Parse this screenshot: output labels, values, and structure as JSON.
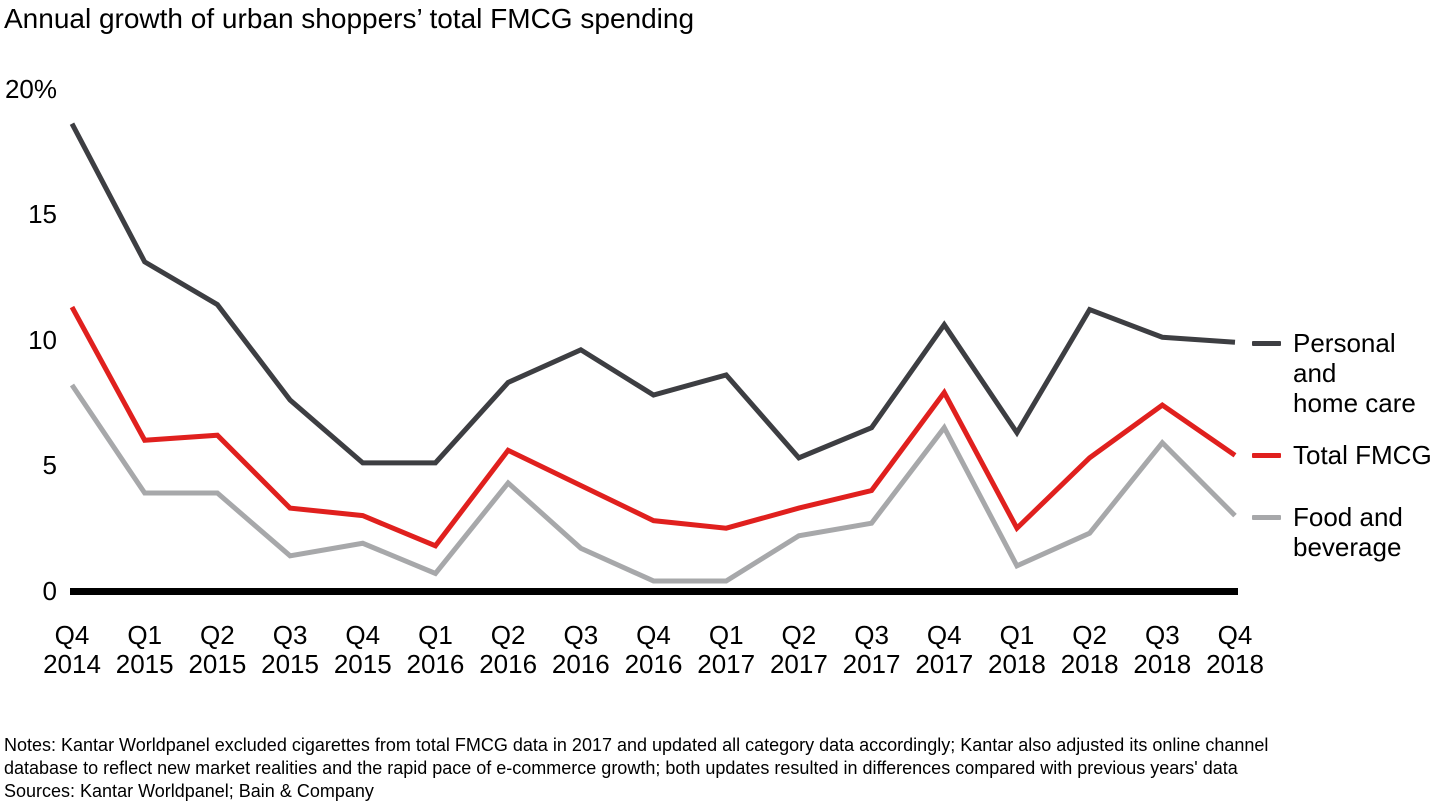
{
  "title": "Annual growth of urban shoppers’ total FMCG spending",
  "chart_data": {
    "type": "line",
    "categories": [
      "Q4 2014",
      "Q1 2015",
      "Q2 2015",
      "Q3 2015",
      "Q4 2015",
      "Q1 2016",
      "Q2 2016",
      "Q3 2016",
      "Q4 2016",
      "Q1 2017",
      "Q2 2017",
      "Q3 2017",
      "Q4 2017",
      "Q1 2018",
      "Q2 2018",
      "Q3 2018",
      "Q4 2018"
    ],
    "series": [
      {
        "name": "Personal and home care",
        "color": "#3d3e42",
        "values": [
          18.6,
          13.1,
          11.4,
          7.6,
          5.1,
          5.1,
          8.3,
          9.6,
          7.8,
          8.6,
          5.3,
          6.5,
          10.6,
          6.3,
          11.2,
          10.1,
          9.9
        ]
      },
      {
        "name": "Total FMCG",
        "color": "#e0201e",
        "values": [
          11.3,
          6.0,
          6.2,
          3.3,
          3.0,
          1.8,
          5.6,
          4.2,
          2.8,
          2.5,
          3.3,
          4.0,
          7.9,
          2.5,
          5.3,
          7.4,
          5.4
        ]
      },
      {
        "name": "Food and beverage",
        "color": "#a7a8aa",
        "values": [
          8.2,
          3.9,
          3.9,
          1.4,
          1.9,
          0.7,
          4.3,
          1.7,
          0.4,
          0.4,
          2.2,
          2.7,
          6.5,
          1.0,
          2.3,
          5.9,
          3.0
        ]
      }
    ],
    "title": "Annual growth of urban shoppers’ total FMCG spending",
    "xlabel": "",
    "ylabel": "",
    "ylim": [
      0,
      20
    ],
    "y_ticks": [
      {
        "label": "20%",
        "value": 20
      },
      {
        "label": "15",
        "value": 15
      },
      {
        "label": "10",
        "value": 10
      },
      {
        "label": "5",
        "value": 5
      },
      {
        "label": "0",
        "value": 0
      }
    ],
    "grid": false,
    "legend_position": "right",
    "axis_color": "#000000"
  },
  "legend": {
    "items": [
      {
        "label": "Personal and\nhome care",
        "color": "#3d3e42"
      },
      {
        "label": "Total FMCG",
        "color": "#e0201e"
      },
      {
        "label": "Food and\nbeverage",
        "color": "#a7a8aa"
      }
    ]
  },
  "notes": {
    "line1": "Notes: Kantar Worldpanel excluded cigarettes from total FMCG data in 2017 and updated all category data accordingly; Kantar also adjusted its online channel",
    "line2": "database to reflect new market realities and the rapid pace of e-commerce growth; both updates resulted in differences compared with previous years' data",
    "sources": "Sources: Kantar Worldpanel; Bain & Company"
  }
}
